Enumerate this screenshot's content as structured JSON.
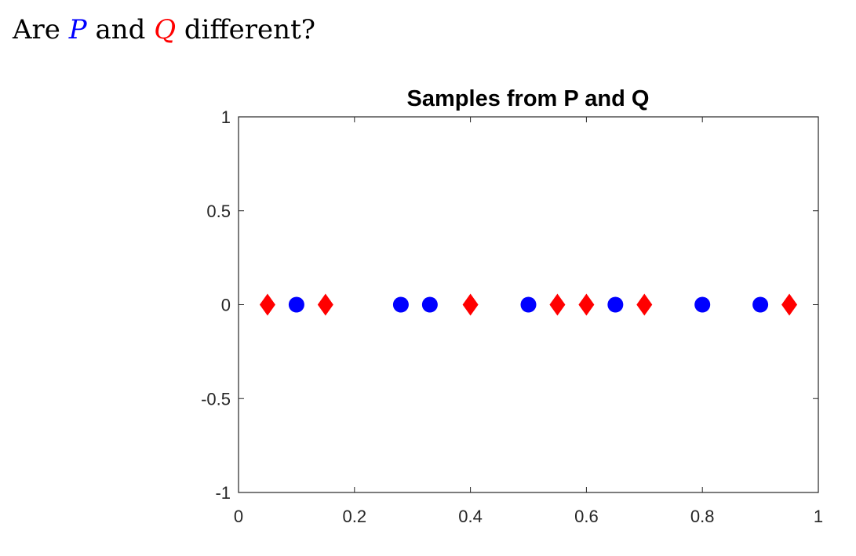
{
  "heading": {
    "prefix": "Are ",
    "p_symbol": "P",
    "middle": " and ",
    "q_symbol": "Q",
    "suffix": " different?"
  },
  "colors": {
    "P": "#0000ff",
    "Q": "#ff0000"
  },
  "chart_data": {
    "type": "scatter",
    "title": "Samples from P and Q",
    "xlabel": "",
    "ylabel": "",
    "xlim": [
      0,
      1
    ],
    "ylim": [
      -1,
      1
    ],
    "xticks": [
      "0",
      "0.2",
      "0.4",
      "0.6",
      "0.8",
      "1"
    ],
    "yticks": [
      "1",
      "0.5",
      "0",
      "-0.5",
      "-1"
    ],
    "grid": false,
    "series": [
      {
        "marker": "circle",
        "color": "#0000ff",
        "x": [
          0.1,
          0.28,
          0.33,
          0.5,
          0.65,
          0.8,
          0.9
        ],
        "y": [
          0,
          0,
          0,
          0,
          0,
          0,
          0
        ]
      },
      {
        "marker": "diamond",
        "color": "#ff0000",
        "x": [
          0.05,
          0.15,
          0.4,
          0.55,
          0.6,
          0.7,
          0.95
        ],
        "y": [
          0,
          0,
          0,
          0,
          0,
          0,
          0
        ]
      }
    ]
  }
}
